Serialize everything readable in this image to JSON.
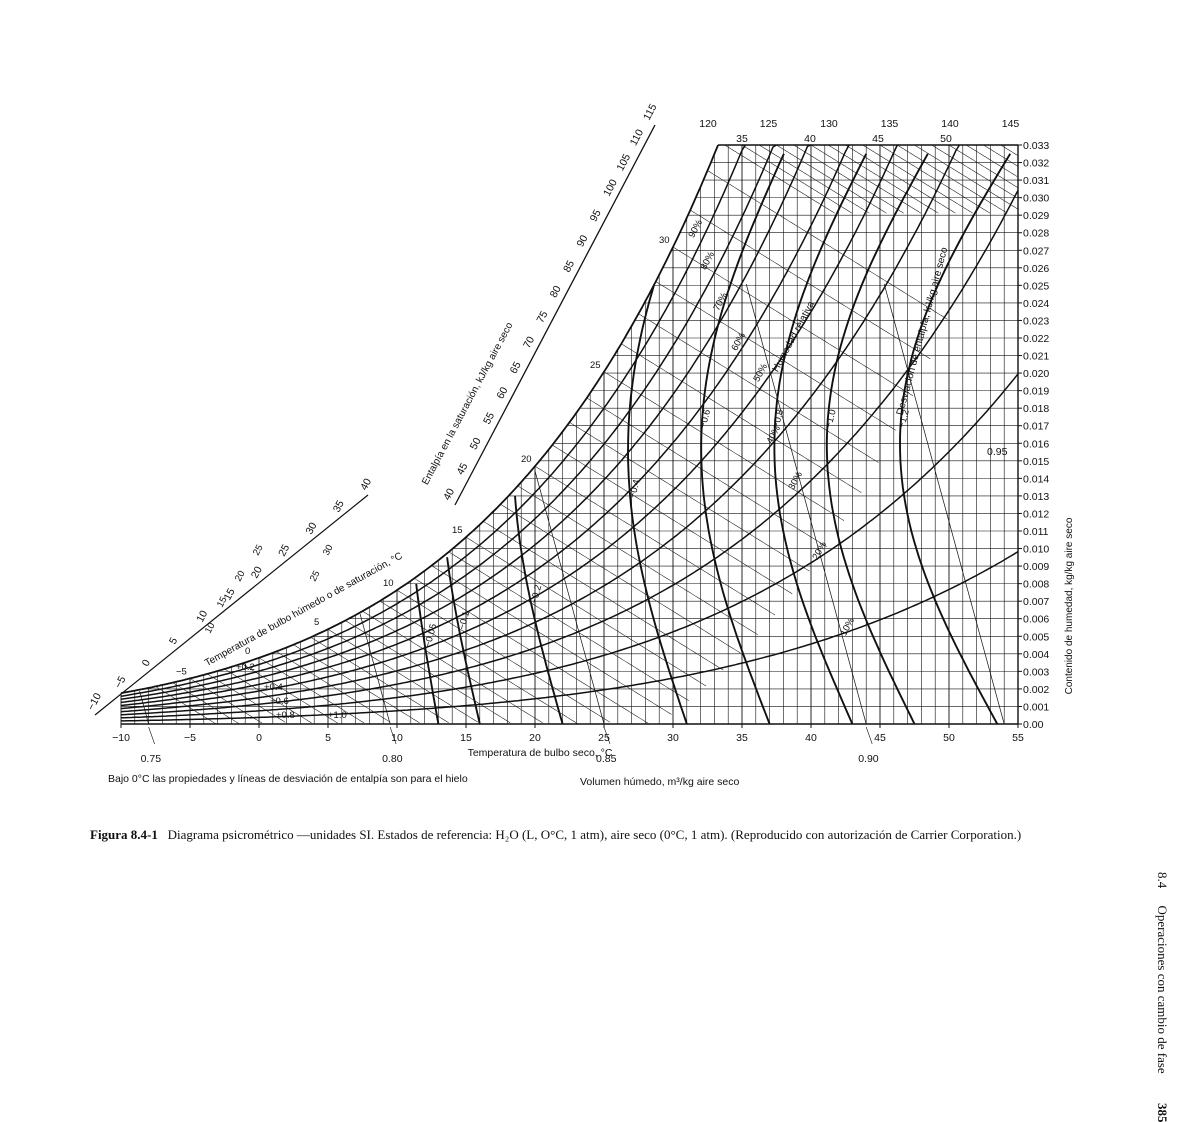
{
  "chart_data": {
    "type": "line",
    "title": "Diagrama psicrométrico —unidades SI",
    "xlabel": "Temperatura de bulbo seco, °C",
    "ylabel": "Contenido de humedad, kg/kg aire seco",
    "xlim": [
      -10,
      55
    ],
    "ylim": [
      0,
      0.033
    ],
    "x_ticks": [
      "−10",
      "−5",
      "0",
      "5",
      "10",
      "15",
      "20",
      "25",
      "30",
      "35",
      "40",
      "45",
      "50",
      "55"
    ],
    "y_ticks": [
      "0.00",
      "0.001",
      "0.002",
      "0.003",
      "0.004",
      "0.005",
      "0.006",
      "0.007",
      "0.008",
      "0.009",
      "0.010",
      "0.011",
      "0.012",
      "0.013",
      "0.014",
      "0.015",
      "0.016",
      "0.017",
      "0.018",
      "0.019",
      "0.020",
      "0.021",
      "0.022",
      "0.023",
      "0.024",
      "0.025",
      "0.026",
      "0.027",
      "0.028",
      "0.029",
      "0.030",
      "0.031",
      "0.032",
      "0.033"
    ],
    "grid": true,
    "saturation_enthalpy_label": "Entalpía en la saturación, kJ/kg aire seco",
    "saturation_enthalpy_ticks": [
      "40",
      "45",
      "50",
      "55",
      "60",
      "65",
      "70",
      "75",
      "80",
      "85",
      "90",
      "95",
      "100",
      "105",
      "110",
      "115"
    ],
    "top_enthalpy_ticks": [
      "120",
      "125",
      "130",
      "135",
      "140",
      "145"
    ],
    "low_enthalpy_ticks": [
      "−10",
      "−5",
      "0",
      "5",
      "10",
      "15",
      "20",
      "25",
      "30",
      "35",
      "40"
    ],
    "wet_bulb_label": "Temperatura de bulbo húmedo o de saturación, °C",
    "wet_bulb_ticks": [
      "−5",
      "0",
      "5",
      "10",
      "15",
      "20",
      "25",
      "30",
      "35",
      "40",
      "45",
      "50"
    ],
    "inner_wet_bulb_labels": [
      "10",
      "15",
      "20",
      "25",
      "25",
      "30"
    ],
    "relative_humidity_label": "Humedad relativa",
    "relative_humidity_series": [
      {
        "name": "10%",
        "rh": 10
      },
      {
        "name": "20%",
        "rh": 20
      },
      {
        "name": "30%",
        "rh": 30
      },
      {
        "name": "40%",
        "rh": 40
      },
      {
        "name": "50%",
        "rh": 50
      },
      {
        "name": "60%",
        "rh": 60
      },
      {
        "name": "70%",
        "rh": 70
      },
      {
        "name": "80%",
        "rh": 80
      },
      {
        "name": "90%",
        "rh": 90
      }
    ],
    "enthalpy_deviation_label": "Desviación de entalpía, kJ/kg aire seco",
    "enthalpy_deviation_lines": [
      {
        "label": "−0.05",
        "t": 13.0
      },
      {
        "label": "−0.1",
        "t": 16.0
      },
      {
        "label": "−0.2",
        "t": 22.0
      },
      {
        "label": "−0.4",
        "t": 31.0
      },
      {
        "label": "−0.6",
        "t": 37.0
      },
      {
        "label": "−0.8",
        "t": 43.0
      },
      {
        "label": "−1.0",
        "t": 47.5
      },
      {
        "label": "−1.2",
        "t": 53.5
      }
    ],
    "ice_deviation_labels": [
      "+0.2",
      "+0.4",
      "+0.6",
      "+0.8",
      "+1.0"
    ],
    "volume_label": "Volumen húmedo, m³/kg aire seco",
    "volume_lines": [
      {
        "label": "0.75",
        "t": -8
      },
      {
        "label": "0.80",
        "t": 9.5
      },
      {
        "label": "0.85",
        "t": 25
      },
      {
        "label": "0.90",
        "t": 44
      },
      {
        "label": "0.95",
        "t": 54
      }
    ],
    "note": "Bajo 0°C las propiedades y líneas de desviación de entalpía son para el hielo"
  },
  "caption": {
    "label": "Figura 8.4-1",
    "text": "Diagrama psicrométrico —unidades SI. Estados de referencia: H₂O (L, O°C, 1 atm), aire seco (0°C, 1 atm). (Reproducido con autorización de Carrier Corporation.)"
  },
  "running_head": {
    "section": "8.4",
    "title": "Operaciones con cambio de fase",
    "page": "385"
  }
}
